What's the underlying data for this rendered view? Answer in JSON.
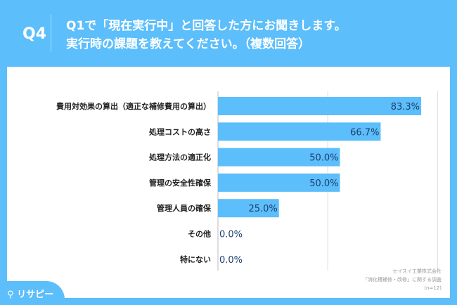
{
  "header": {
    "q": "Q4",
    "line1": "Q1で「現在実行中」と回答した方にお聞きします。",
    "line2": "実行時の課題を教えてください。（複数回答）"
  },
  "logo": "リサピー",
  "source": {
    "company": "セイスイ工業株式会社",
    "survey": "「消化槽補修・改修」に関する調査",
    "n": "(n=12)"
  },
  "colors": {
    "bar": "#5cbefa",
    "value": "#1d3f6e"
  },
  "chart_data": {
    "type": "bar",
    "orientation": "horizontal",
    "categories": [
      "費用対効果の算出（適正な補修費用の算出）",
      "処理コストの高さ",
      "処理方法の適正化",
      "管理の安全性確保",
      "管理人員の確保",
      "その他",
      "特にない"
    ],
    "values": [
      83.3,
      66.7,
      50.0,
      50.0,
      25.0,
      0.0,
      0.0
    ],
    "labels": [
      "83.3%",
      "66.7%",
      "50.0%",
      "50.0%",
      "25.0%",
      "0.0%",
      "0.0%"
    ],
    "xlim": [
      0,
      100
    ],
    "grid": true
  }
}
